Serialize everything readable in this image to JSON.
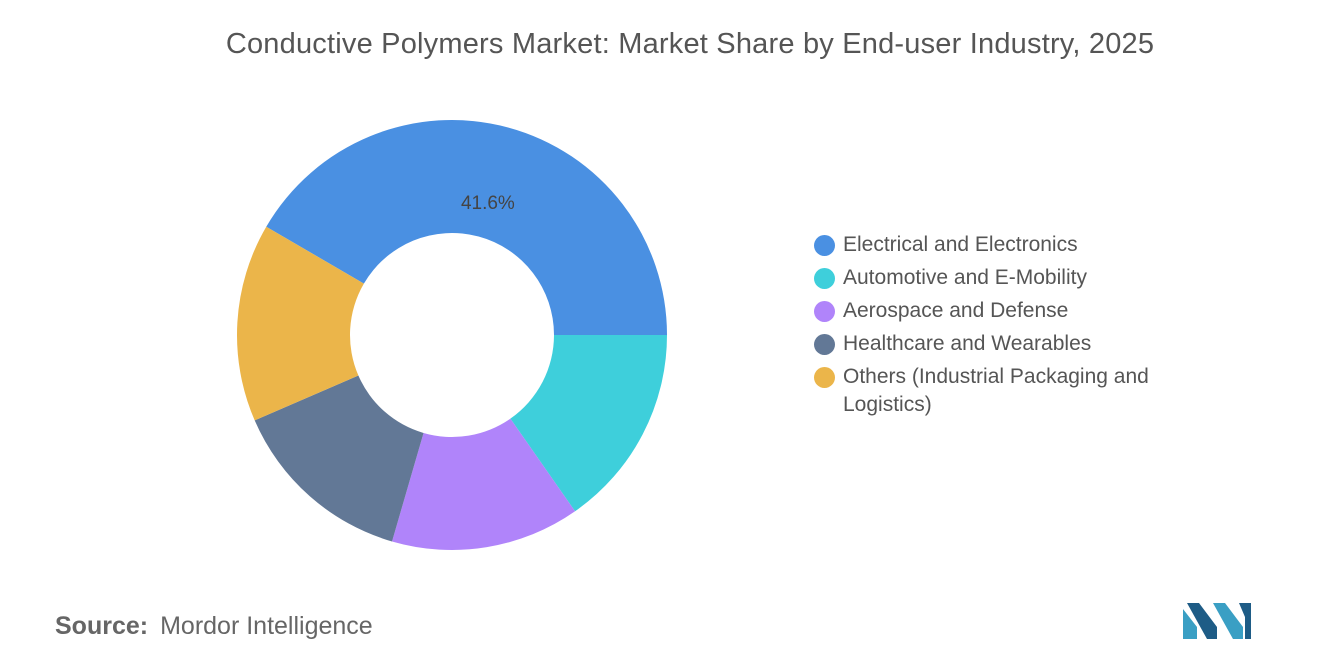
{
  "chart_data": {
    "type": "pie",
    "title": "Conductive Polymers Market: Market Share by End-user Industry, 2025",
    "donut": true,
    "legend_position": "right",
    "slices": [
      {
        "label": "Electrical and Electronics",
        "value": 41.6,
        "color": "#4A90E2",
        "value_label": "41.6%"
      },
      {
        "label": "Automotive and E-Mobility",
        "value": 15.3,
        "color": "#3ECFDB",
        "value_label": ""
      },
      {
        "label": "Aerospace and Defense",
        "value": 14.2,
        "color": "#B084FA",
        "value_label": ""
      },
      {
        "label": "Healthcare and Wearables",
        "value": 14.0,
        "color": "#627896",
        "value_label": ""
      },
      {
        "label": "Others (Industrial Packaging and Logistics)",
        "value": 14.9,
        "color": "#EBB54A",
        "value_label": ""
      }
    ]
  },
  "source": {
    "label": "Source:",
    "text": "Mordor Intelligence"
  },
  "logo": {
    "icon": "mordor-intelligence-logo-icon",
    "colors": [
      "#3A9FC4",
      "#1E5C86"
    ]
  }
}
